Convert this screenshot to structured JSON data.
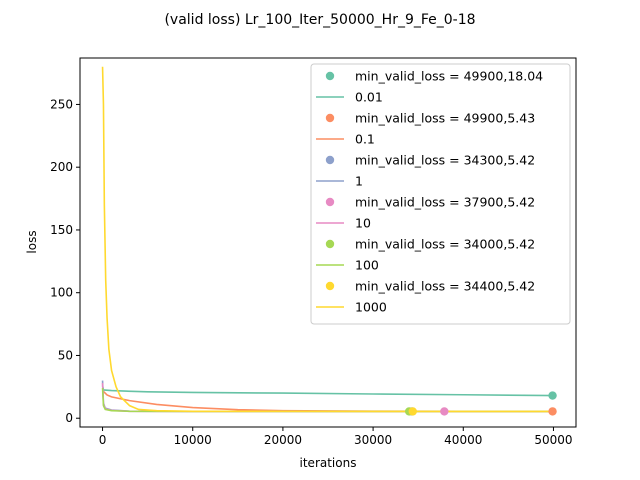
{
  "chart_data": {
    "type": "line",
    "title": "(valid loss) Lr_100_Iter_50000_Hr_9_Fe_0-18",
    "xlabel": "iterations",
    "ylabel": "loss",
    "xlim": [
      -2500,
      52500
    ],
    "ylim": [
      -7,
      287
    ],
    "xticks": [
      0,
      10000,
      20000,
      30000,
      40000,
      50000
    ],
    "xtick_labels": [
      "0",
      "10000",
      "20000",
      "30000",
      "40000",
      "50000"
    ],
    "yticks": [
      0,
      50,
      100,
      150,
      200,
      250
    ],
    "ytick_labels": [
      "0",
      "50",
      "100",
      "150",
      "200",
      "250"
    ],
    "grid": false,
    "legend_position": "upper right",
    "series": [
      {
        "name": "0.01",
        "color": "#66c2a5",
        "min_label": "min_valid_loss = 49900,18.04",
        "min_point": [
          49900,
          18.04
        ],
        "points": [
          [
            0,
            26
          ],
          [
            100,
            22.5
          ],
          [
            1000,
            22
          ],
          [
            5000,
            21
          ],
          [
            10000,
            20.5
          ],
          [
            20000,
            20
          ],
          [
            30000,
            19.3
          ],
          [
            40000,
            18.7
          ],
          [
            50000,
            18.04
          ]
        ]
      },
      {
        "name": "0.1",
        "color": "#fc8d62",
        "min_label": "min_valid_loss = 49900,5.43",
        "min_point": [
          49900,
          5.43
        ],
        "points": [
          [
            0,
            22
          ],
          [
            500,
            18.5
          ],
          [
            1000,
            17
          ],
          [
            3000,
            14
          ],
          [
            6000,
            11
          ],
          [
            10000,
            8.5
          ],
          [
            15000,
            6.8
          ],
          [
            20000,
            6
          ],
          [
            30000,
            5.6
          ],
          [
            40000,
            5.5
          ],
          [
            50000,
            5.43
          ]
        ]
      },
      {
        "name": "1",
        "color": "#8da0cb",
        "min_label": "min_valid_loss = 34300,5.42",
        "min_point": [
          34300,
          5.42
        ],
        "points": [
          [
            0,
            30
          ],
          [
            100,
            12
          ],
          [
            300,
            8
          ],
          [
            1000,
            6.5
          ],
          [
            3000,
            5.6
          ],
          [
            10000,
            5.45
          ],
          [
            34300,
            5.42
          ],
          [
            50000,
            5.42
          ]
        ]
      },
      {
        "name": "10",
        "color": "#e78ac3",
        "min_label": "min_valid_loss = 37900,5.42",
        "min_point": [
          37900,
          5.42
        ],
        "points": [
          [
            0,
            28
          ],
          [
            100,
            11
          ],
          [
            300,
            7.5
          ],
          [
            1000,
            6.2
          ],
          [
            3000,
            5.5
          ],
          [
            10000,
            5.44
          ],
          [
            37900,
            5.42
          ],
          [
            50000,
            5.42
          ]
        ]
      },
      {
        "name": "100",
        "color": "#a6d854",
        "min_label": "min_valid_loss = 34000,5.42",
        "min_point": [
          34000,
          5.42
        ],
        "points": [
          [
            0,
            24
          ],
          [
            100,
            10
          ],
          [
            300,
            7
          ],
          [
            1000,
            6
          ],
          [
            3000,
            5.5
          ],
          [
            10000,
            5.44
          ],
          [
            34000,
            5.42
          ],
          [
            50000,
            5.42
          ]
        ]
      },
      {
        "name": "1000",
        "color": "#ffd92f",
        "min_label": "min_valid_loss = 34400,5.42",
        "min_point": [
          34400,
          5.42
        ],
        "points": [
          [
            0,
            280
          ],
          [
            100,
            250
          ],
          [
            200,
            170
          ],
          [
            350,
            110
          ],
          [
            500,
            80
          ],
          [
            700,
            55
          ],
          [
            1000,
            38
          ],
          [
            1500,
            25
          ],
          [
            2000,
            17
          ],
          [
            3000,
            10
          ],
          [
            4000,
            7
          ],
          [
            6000,
            6
          ],
          [
            10000,
            5.5
          ],
          [
            20000,
            5.45
          ],
          [
            34400,
            5.42
          ],
          [
            50000,
            5.42
          ]
        ]
      }
    ]
  }
}
